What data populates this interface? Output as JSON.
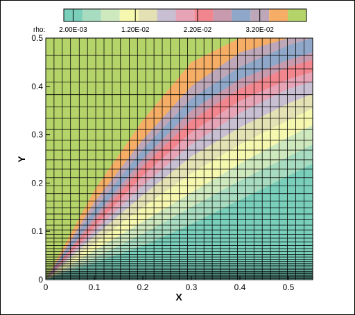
{
  "chart_data": {
    "type": "heatmap",
    "xlabel": "X",
    "ylabel": "Y",
    "xlim": [
      0,
      0.55
    ],
    "ylim": [
      0,
      0.5
    ],
    "x_ticks": [
      "0",
      "0.1",
      "0.2",
      "0.3",
      "0.4",
      "0.5"
    ],
    "y_ticks": [
      "0",
      "0.1",
      "0.2",
      "0.3",
      "0.4",
      "0.5"
    ],
    "grid": true,
    "legend": {
      "variable": "rho:",
      "placement": "top",
      "tick_labels": [
        "2.00E-03",
        "1.20E-02",
        "2.20E-02",
        "3.20E-02"
      ],
      "tick_values": [
        0.002,
        0.012,
        0.022,
        0.032
      ],
      "min": 0.0005,
      "max": 0.0395,
      "levels": [
        {
          "low": 0.0005,
          "high": 0.0035,
          "color": "#79cfba"
        },
        {
          "low": 0.0035,
          "high": 0.0065,
          "color": "#a8dcc0"
        },
        {
          "low": 0.0065,
          "high": 0.0095,
          "color": "#cfe9bf"
        },
        {
          "low": 0.0095,
          "high": 0.0125,
          "color": "#f6f8b0"
        },
        {
          "low": 0.0125,
          "high": 0.0155,
          "color": "#e4e1b4"
        },
        {
          "low": 0.0155,
          "high": 0.0185,
          "color": "#c9bfd3"
        },
        {
          "low": 0.0185,
          "high": 0.0215,
          "color": "#e6a4b6"
        },
        {
          "low": 0.0215,
          "high": 0.0245,
          "color": "#f2868e"
        },
        {
          "low": 0.0245,
          "high": 0.0275,
          "color": "#c89aae"
        },
        {
          "low": 0.0275,
          "high": 0.0305,
          "color": "#8fa7c9"
        },
        {
          "low": 0.0305,
          "high": 0.0335,
          "color": "#bda7b8"
        },
        {
          "low": 0.0335,
          "high": 0.0365,
          "color": "#f6ae66"
        },
        {
          "low": 0.0365,
          "high": 0.0395,
          "color": "#b4d46a"
        }
      ]
    },
    "bands": [
      {
        "level": 0,
        "upper": [
          [
            0,
            0.0
          ],
          [
            0.1,
            0.035
          ],
          [
            0.2,
            0.07
          ],
          [
            0.3,
            0.115
          ],
          [
            0.4,
            0.165
          ],
          [
            0.5,
            0.215
          ],
          [
            0.55,
            0.24
          ]
        ]
      },
      {
        "level": 1,
        "upper": [
          [
            0,
            0.0
          ],
          [
            0.1,
            0.045
          ],
          [
            0.2,
            0.095
          ],
          [
            0.3,
            0.15
          ],
          [
            0.4,
            0.205
          ],
          [
            0.5,
            0.255
          ],
          [
            0.55,
            0.28
          ]
        ]
      },
      {
        "level": 2,
        "upper": [
          [
            0,
            0.0
          ],
          [
            0.1,
            0.06
          ],
          [
            0.2,
            0.12
          ],
          [
            0.3,
            0.18
          ],
          [
            0.4,
            0.24
          ],
          [
            0.5,
            0.295
          ],
          [
            0.55,
            0.32
          ]
        ]
      },
      {
        "level": 3,
        "upper": [
          [
            0,
            0.0
          ],
          [
            0.1,
            0.075
          ],
          [
            0.2,
            0.15
          ],
          [
            0.3,
            0.22
          ],
          [
            0.4,
            0.28
          ],
          [
            0.5,
            0.33
          ],
          [
            0.55,
            0.355
          ]
        ]
      },
      {
        "level": 4,
        "upper": [
          [
            0,
            0.0
          ],
          [
            0.1,
            0.09
          ],
          [
            0.2,
            0.175
          ],
          [
            0.3,
            0.255
          ],
          [
            0.4,
            0.315
          ],
          [
            0.5,
            0.365
          ],
          [
            0.55,
            0.385
          ]
        ]
      },
      {
        "level": 5,
        "upper": [
          [
            0,
            0.0
          ],
          [
            0.1,
            0.1
          ],
          [
            0.2,
            0.195
          ],
          [
            0.3,
            0.28
          ],
          [
            0.4,
            0.345
          ],
          [
            0.5,
            0.395
          ],
          [
            0.55,
            0.41
          ]
        ]
      },
      {
        "level": 6,
        "upper": [
          [
            0,
            0.0
          ],
          [
            0.1,
            0.11
          ],
          [
            0.2,
            0.215
          ],
          [
            0.3,
            0.305
          ],
          [
            0.4,
            0.37
          ],
          [
            0.5,
            0.415
          ],
          [
            0.55,
            0.43
          ]
        ]
      },
      {
        "level": 7,
        "upper": [
          [
            0,
            0.0
          ],
          [
            0.1,
            0.12
          ],
          [
            0.2,
            0.235
          ],
          [
            0.3,
            0.33
          ],
          [
            0.4,
            0.395
          ],
          [
            0.5,
            0.44
          ],
          [
            0.55,
            0.455
          ]
        ]
      },
      {
        "level": 8,
        "upper": [
          [
            0,
            0.0
          ],
          [
            0.1,
            0.13
          ],
          [
            0.2,
            0.25
          ],
          [
            0.3,
            0.35
          ],
          [
            0.4,
            0.415
          ],
          [
            0.5,
            0.455
          ],
          [
            0.55,
            0.47
          ]
        ]
      },
      {
        "level": 9,
        "upper": [
          [
            0,
            0.0
          ],
          [
            0.1,
            0.145
          ],
          [
            0.2,
            0.27
          ],
          [
            0.3,
            0.375
          ],
          [
            0.4,
            0.44
          ],
          [
            0.5,
            0.485
          ],
          [
            0.55,
            0.5
          ]
        ]
      },
      {
        "level": 10,
        "upper": [
          [
            0,
            0.0
          ],
          [
            0.1,
            0.16
          ],
          [
            0.2,
            0.29
          ],
          [
            0.3,
            0.4
          ],
          [
            0.4,
            0.47
          ],
          [
            0.5,
            0.5
          ],
          [
            0.55,
            0.5
          ]
        ]
      },
      {
        "level": 11,
        "upper": [
          [
            0,
            0.0
          ],
          [
            0.1,
            0.185
          ],
          [
            0.2,
            0.33
          ],
          [
            0.3,
            0.45
          ],
          [
            0.4,
            0.5
          ],
          [
            0.5,
            0.5
          ],
          [
            0.55,
            0.5
          ]
        ]
      },
      {
        "level": 12,
        "upper": [
          [
            0,
            0.5
          ],
          [
            0.55,
            0.5
          ]
        ]
      }
    ],
    "mesh": {
      "x": [
        0,
        0.017,
        0.034,
        0.051,
        0.069,
        0.086,
        0.103,
        0.12,
        0.137,
        0.154,
        0.172,
        0.189,
        0.206,
        0.223,
        0.24,
        0.257,
        0.275,
        0.292,
        0.309,
        0.326,
        0.343,
        0.36,
        0.378,
        0.395,
        0.412,
        0.429,
        0.446,
        0.463,
        0.481,
        0.498,
        0.515,
        0.532,
        0.55
      ],
      "y": [
        0,
        0.002,
        0.004,
        0.006,
        0.008,
        0.01,
        0.012,
        0.014,
        0.016,
        0.018,
        0.021,
        0.024,
        0.027,
        0.03,
        0.034,
        0.038,
        0.042,
        0.047,
        0.052,
        0.058,
        0.064,
        0.071,
        0.078,
        0.086,
        0.094,
        0.103,
        0.113,
        0.124,
        0.136,
        0.149,
        0.163,
        0.178,
        0.194,
        0.211,
        0.229,
        0.248,
        0.268,
        0.289,
        0.311,
        0.334,
        0.358,
        0.383,
        0.409,
        0.436,
        0.464,
        0.5
      ]
    }
  }
}
